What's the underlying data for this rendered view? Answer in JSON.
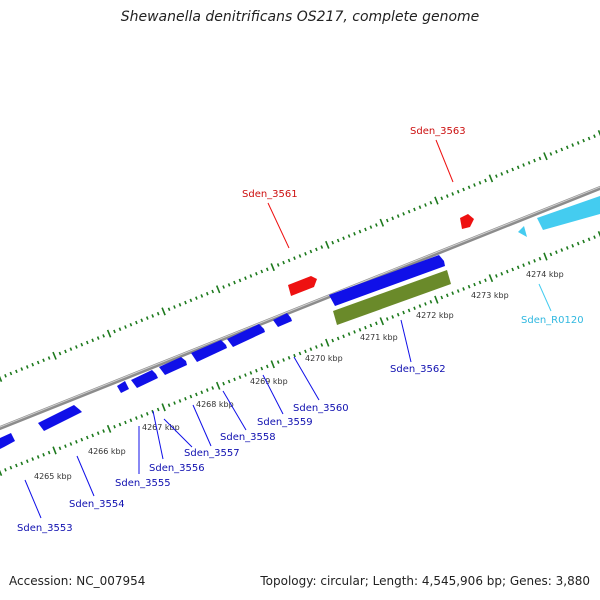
{
  "title": "Shewanella denitrificans OS217, complete genome",
  "footer": {
    "accession": "Accession: NC_007954",
    "summary": "Topology: circular; Length: 4,545,906 bp; Genes: 3,880"
  },
  "colors": {
    "forward_gene": "#1010e8",
    "reverse_gene": "#ee1111",
    "rna_gene": "#44ccf0",
    "highlight_gene": "#6a8a2a",
    "backbone": "#8c8c8c",
    "tick": "#1e7a1e"
  },
  "kbp_ticks": [
    "4265 kbp",
    "4266 kbp",
    "4267 kbp",
    "4268 kbp",
    "4269 kbp",
    "4270 kbp",
    "4271 kbp",
    "4272 kbp",
    "4273 kbp",
    "4274 kbp"
  ],
  "genes": [
    {
      "name": "Sden_3553",
      "type": "forward-cds"
    },
    {
      "name": "Sden_3554",
      "type": "forward-cds"
    },
    {
      "name": "Sden_3555",
      "type": "forward-cds"
    },
    {
      "name": "Sden_3556",
      "type": "forward-cds"
    },
    {
      "name": "Sden_3557",
      "type": "forward-cds"
    },
    {
      "name": "Sden_3558",
      "type": "forward-cds"
    },
    {
      "name": "Sden_3559",
      "type": "forward-cds"
    },
    {
      "name": "Sden_3560",
      "type": "forward-cds"
    },
    {
      "name": "Sden_3561",
      "type": "reverse-cds"
    },
    {
      "name": "Sden_3562",
      "type": "forward-cds-highlighted"
    },
    {
      "name": "Sden_3563",
      "type": "reverse-cds"
    },
    {
      "name": "Sden_R0120",
      "type": "rna"
    }
  ]
}
